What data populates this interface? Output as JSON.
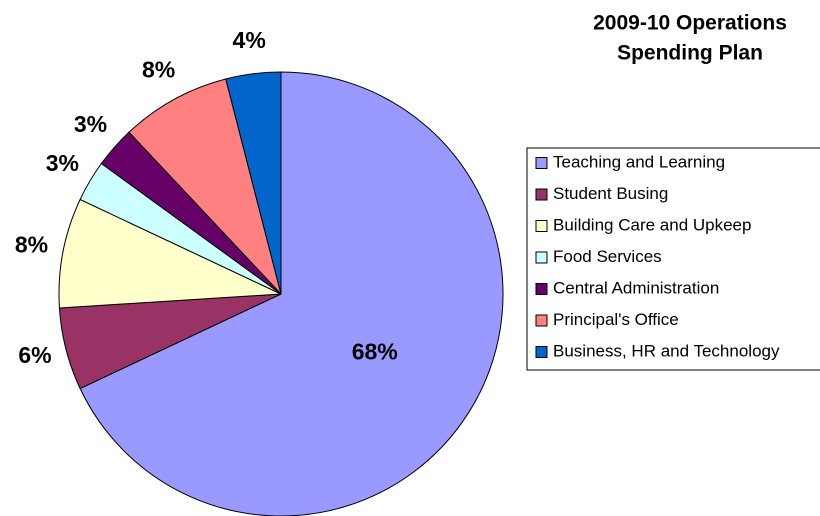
{
  "chart_data": {
    "type": "pie",
    "title": [
      "2009-10 Operations",
      "Spending Plan"
    ],
    "categories": [
      "Teaching and Learning",
      "Student Busing",
      "Building Care and Upkeep",
      "Food Services",
      "Central Administration",
      "Principal's Office",
      "Business, HR and Technology"
    ],
    "values": [
      68,
      6,
      8,
      3,
      3,
      8,
      4
    ],
    "value_labels": [
      "68%",
      "6%",
      "8%",
      "3%",
      "3%",
      "8%",
      "4%"
    ],
    "colors": [
      "#9999ff",
      "#993366",
      "#ffffcc",
      "#ccffff",
      "#660066",
      "#ff8080",
      "#0066cc"
    ],
    "legend": "right"
  }
}
